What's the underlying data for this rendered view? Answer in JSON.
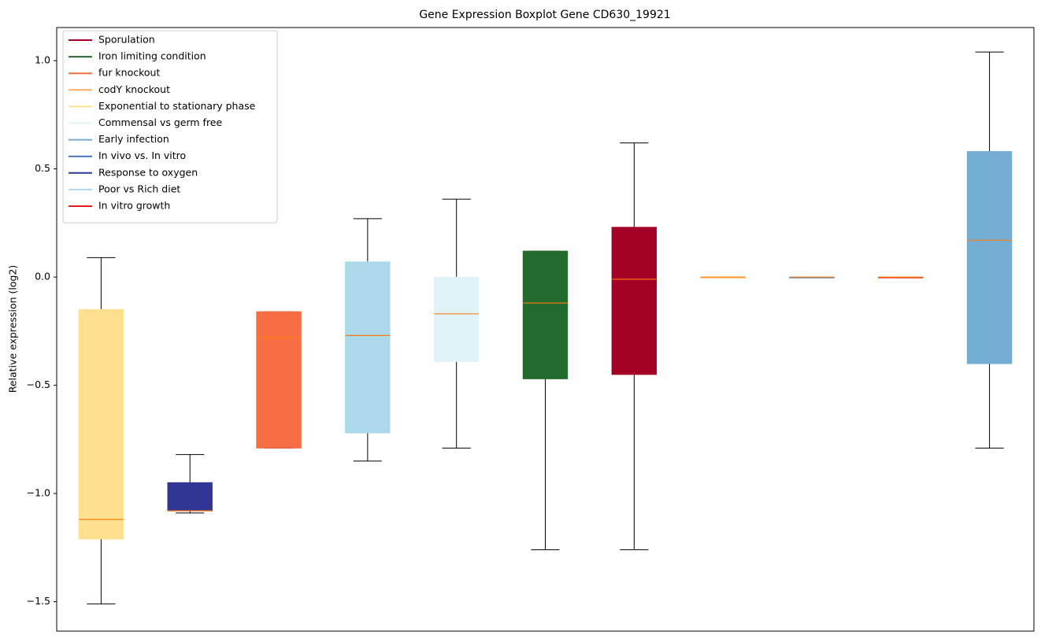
{
  "chart_data": {
    "type": "box",
    "title": "Gene Expression Boxplot Gene CD630_19921",
    "ylabel": "Relative expression (log2)",
    "xlim": [
      0.5,
      11.5
    ],
    "ylim": [
      -1.636,
      1.153
    ],
    "yticks": [
      {
        "value": -1.5,
        "label": "−1.5"
      },
      {
        "value": -1,
        "label": "−1.0"
      },
      {
        "value": -0.5,
        "label": "−0.5"
      },
      {
        "value": 0,
        "label": "0.0"
      },
      0.5,
      {
        "value": 1,
        "label": "1.0"
      }
    ],
    "median_color": "#ff7f0e",
    "whisker_color": "#000000",
    "legend": "upper left",
    "series": [
      {
        "name": "Sporulation",
        "color": "#a50026",
        "x": 7,
        "whislo": -1.26,
        "q1": -0.45,
        "med": -0.01,
        "q3": 0.23,
        "whishi": 0.62
      },
      {
        "name": "Iron limiting condition",
        "color": "#226b2f",
        "x": 6,
        "whislo": -1.26,
        "q1": -0.47,
        "med": -0.12,
        "q3": 0.12,
        "whishi": 0.12
      },
      {
        "name": "fur knockout",
        "color": "#f46d43",
        "x": 3,
        "whislo": -0.79,
        "q1": -0.79,
        "med": -0.28,
        "q3": -0.16,
        "whishi": -0.16
      },
      {
        "name": "codY knockout",
        "color": "#fdae61",
        "x": 8,
        "whislo": 0,
        "q1": 0,
        "med": 0,
        "q3": 0,
        "whishi": 0
      },
      {
        "name": "Exponential to stationary phase",
        "color": "#fee090",
        "x": 1,
        "whislo": -1.51,
        "q1": -1.21,
        "med": -1.12,
        "q3": -0.15,
        "whishi": 0.09
      },
      {
        "name": "Commensal vs germ free",
        "color": "#e0f3f8",
        "x": 5,
        "whislo": -0.79,
        "q1": -0.39,
        "med": -0.17,
        "q3": 0,
        "whishi": 0.36
      },
      {
        "name": "Early infection",
        "color": "#74add1",
        "x": 11,
        "whislo": -0.79,
        "q1": -0.4,
        "med": 0.17,
        "q3": 0.58,
        "whishi": 1.04
      },
      {
        "name": "In vivo vs. In vitro",
        "color": "#4575b4",
        "x": 9,
        "whislo": 0,
        "q1": 0,
        "med": 0,
        "q3": 0,
        "whishi": 0
      },
      {
        "name": "Response to oxygen",
        "color": "#313695",
        "x": 2,
        "whislo": -1.09,
        "q1": -1.08,
        "med": -1.08,
        "q3": -0.95,
        "whishi": -0.82
      },
      {
        "name": "Poor vs Rich diet",
        "color": "#abd9e9",
        "x": 4,
        "whislo": -0.85,
        "q1": -0.72,
        "med": -0.27,
        "q3": 0.07,
        "whishi": 0.27
      },
      {
        "name": "In vitro growth",
        "color": "#e41a1c",
        "x": 10,
        "whislo": 0,
        "q1": 0,
        "med": 0,
        "q3": 0,
        "whishi": 0
      }
    ]
  }
}
